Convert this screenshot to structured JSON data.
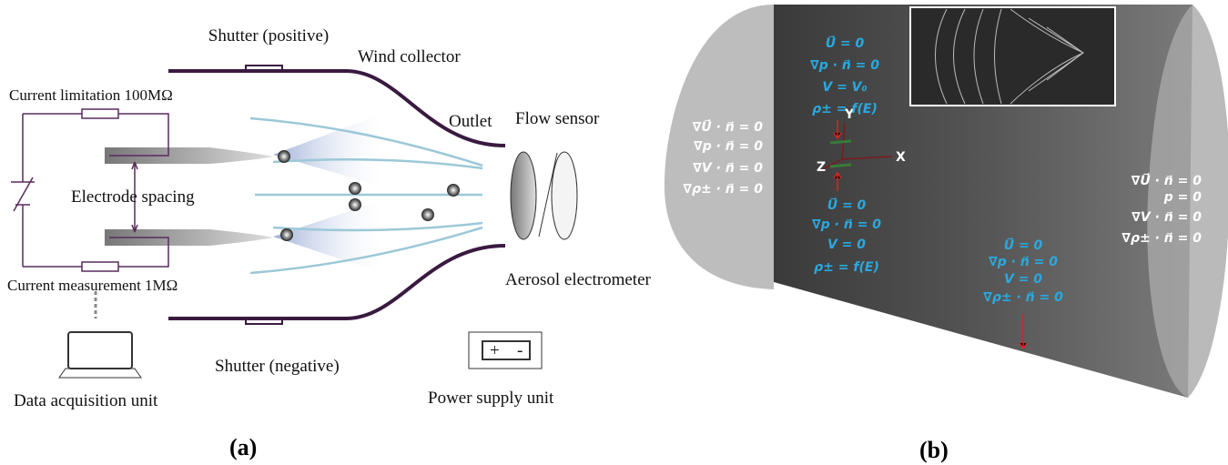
{
  "panel_a": {
    "label": "(a)",
    "shutter_positive": "Shutter (positive)",
    "wind_collector": "Wind collector",
    "current_limitation": "Current limitation 100MΩ",
    "outlet": "Outlet",
    "flow_sensor": "Flow sensor",
    "electrode_spacing": "Electrode spacing",
    "current_measurement": "Current measurement 1MΩ",
    "aerosol_electrometer": "Aerosol electrometer",
    "shutter_negative": "Shutter (negative)",
    "data_acquisition": "Data acquisition unit",
    "power_supply": "Power supply unit",
    "battery_plus": "+",
    "battery_minus": "-"
  },
  "panel_b": {
    "label": "(b)",
    "axis_x": "X",
    "axis_y": "Y",
    "axis_z": "Z",
    "top_electrode": [
      "U⃗ = 0",
      "∇p · n⃗ = 0",
      "V = V₀",
      "ρ± = f(E)"
    ],
    "inlet": [
      "∇U⃗ · n⃗ = 0",
      "∇p · n⃗ = 0",
      "∇V · n⃗ = 0",
      "∇ρ± · n⃗ = 0"
    ],
    "bottom_electrode": [
      "U⃗ = 0",
      "∇p · n⃗ = 0",
      "V = 0",
      "ρ± = f(E)"
    ],
    "wall": [
      "U⃗ = 0",
      "∇p · n⃗ = 0",
      "V = 0",
      "∇ρ± · n⃗ = 0"
    ],
    "outlet": [
      "∇U⃗ · n⃗ = 0",
      "p = 0",
      "∇V · n⃗ = 0",
      "∇ρ± · n⃗ = 0"
    ]
  }
}
